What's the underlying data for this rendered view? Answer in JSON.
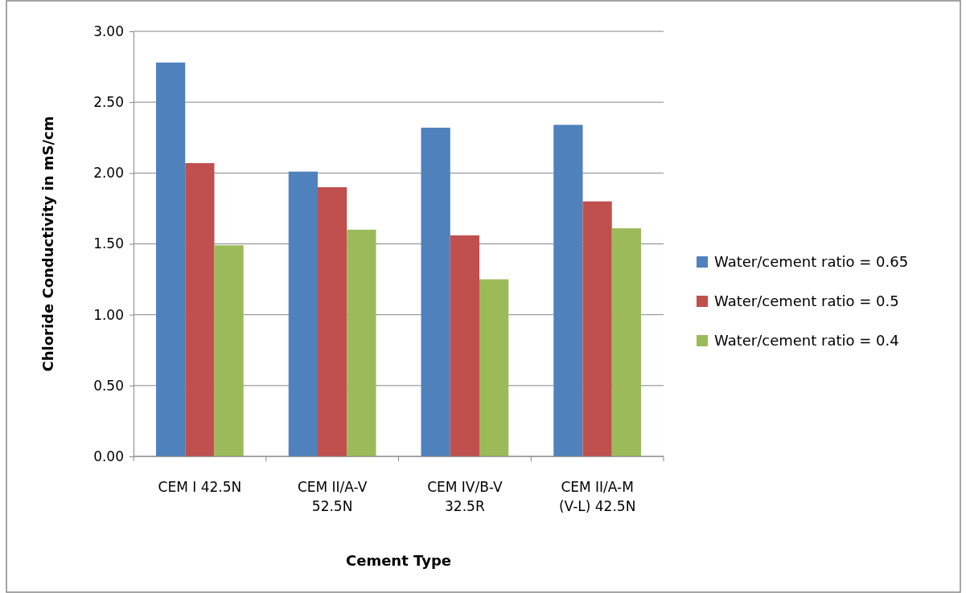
{
  "chart_data": {
    "type": "bar",
    "xlabel": "Cement Type",
    "ylabel": "Chloride Conductivity in mS/cm",
    "categories": [
      "CEM I 42.5N",
      "CEM II/A-V 52.5N",
      "CEM IV/B-V 32.5R",
      "CEM II/A-M (V-L) 42.5N"
    ],
    "series": [
      {
        "name": "Water/cement ratio = 0.65",
        "color": "#4f81bd",
        "values": [
          2.78,
          2.01,
          2.32,
          2.34
        ]
      },
      {
        "name": "Water/cement ratio = 0.5",
        "color": "#c0504d",
        "values": [
          2.07,
          1.9,
          1.56,
          1.8
        ]
      },
      {
        "name": "Water/cement ratio = 0.4",
        "color": "#9bbb59",
        "values": [
          1.49,
          1.6,
          1.25,
          1.61
        ]
      }
    ],
    "ylim": [
      0,
      3
    ],
    "yticks": [
      {
        "value": 0,
        "label": "0.00"
      },
      {
        "value": 0.5,
        "label": "0.50"
      },
      {
        "value": 1,
        "label": "1.00"
      },
      {
        "value": 1.5,
        "label": "1.50"
      },
      {
        "value": 2,
        "label": "2.00"
      },
      {
        "value": 2.5,
        "label": "2.50"
      },
      {
        "value": 3,
        "label": "3.00"
      }
    ],
    "grid": "y",
    "legend": "right"
  }
}
